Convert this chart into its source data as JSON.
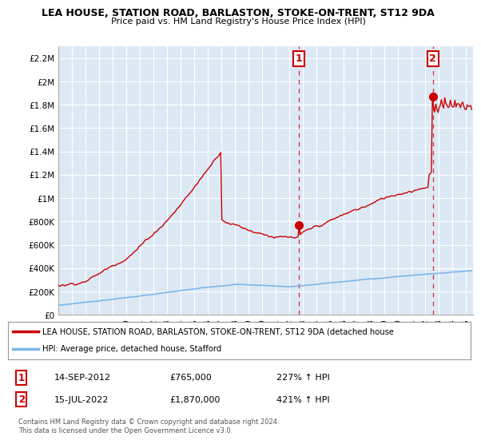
{
  "title1": "LEA HOUSE, STATION ROAD, BARLASTON, STOKE-ON-TRENT, ST12 9DA",
  "title2": "Price paid vs. HM Land Registry's House Price Index (HPI)",
  "ylabel_ticks": [
    "£0",
    "£200K",
    "£400K",
    "£600K",
    "£800K",
    "£1M",
    "£1.2M",
    "£1.4M",
    "£1.6M",
    "£1.8M",
    "£2M",
    "£2.2M"
  ],
  "ytick_values": [
    0,
    200000,
    400000,
    600000,
    800000,
    1000000,
    1200000,
    1400000,
    1600000,
    1800000,
    2000000,
    2200000
  ],
  "ylim": [
    0,
    2300000
  ],
  "xlim_start": 1995.0,
  "xlim_end": 2025.5,
  "xtick_years": [
    1995,
    1996,
    1997,
    1998,
    1999,
    2000,
    2001,
    2002,
    2003,
    2004,
    2005,
    2006,
    2007,
    2008,
    2009,
    2010,
    2011,
    2012,
    2013,
    2014,
    2015,
    2016,
    2017,
    2018,
    2019,
    2020,
    2021,
    2022,
    2023,
    2024,
    2025
  ],
  "hpi_color": "#7eb6e8",
  "house_color": "#cc0000",
  "plot_bg_color": "#dce9f5",
  "grid_color": "#ffffff",
  "marker1_x": 2012.71,
  "marker1_y": 765000,
  "marker2_x": 2022.54,
  "marker2_y": 1870000,
  "legend_house": "LEA HOUSE, STATION ROAD, BARLASTON, STOKE-ON-TRENT, ST12 9DA (detached house",
  "legend_hpi": "HPI: Average price, detached house, Stafford",
  "note1_date": "14-SEP-2012",
  "note1_price": "£765,000",
  "note1_hpi": "227% ↑ HPI",
  "note2_date": "15-JUL-2022",
  "note2_price": "£1,870,000",
  "note2_hpi": "421% ↑ HPI",
  "footer": "Contains HM Land Registry data © Crown copyright and database right 2024.\nThis data is licensed under the Open Government Licence v3.0."
}
